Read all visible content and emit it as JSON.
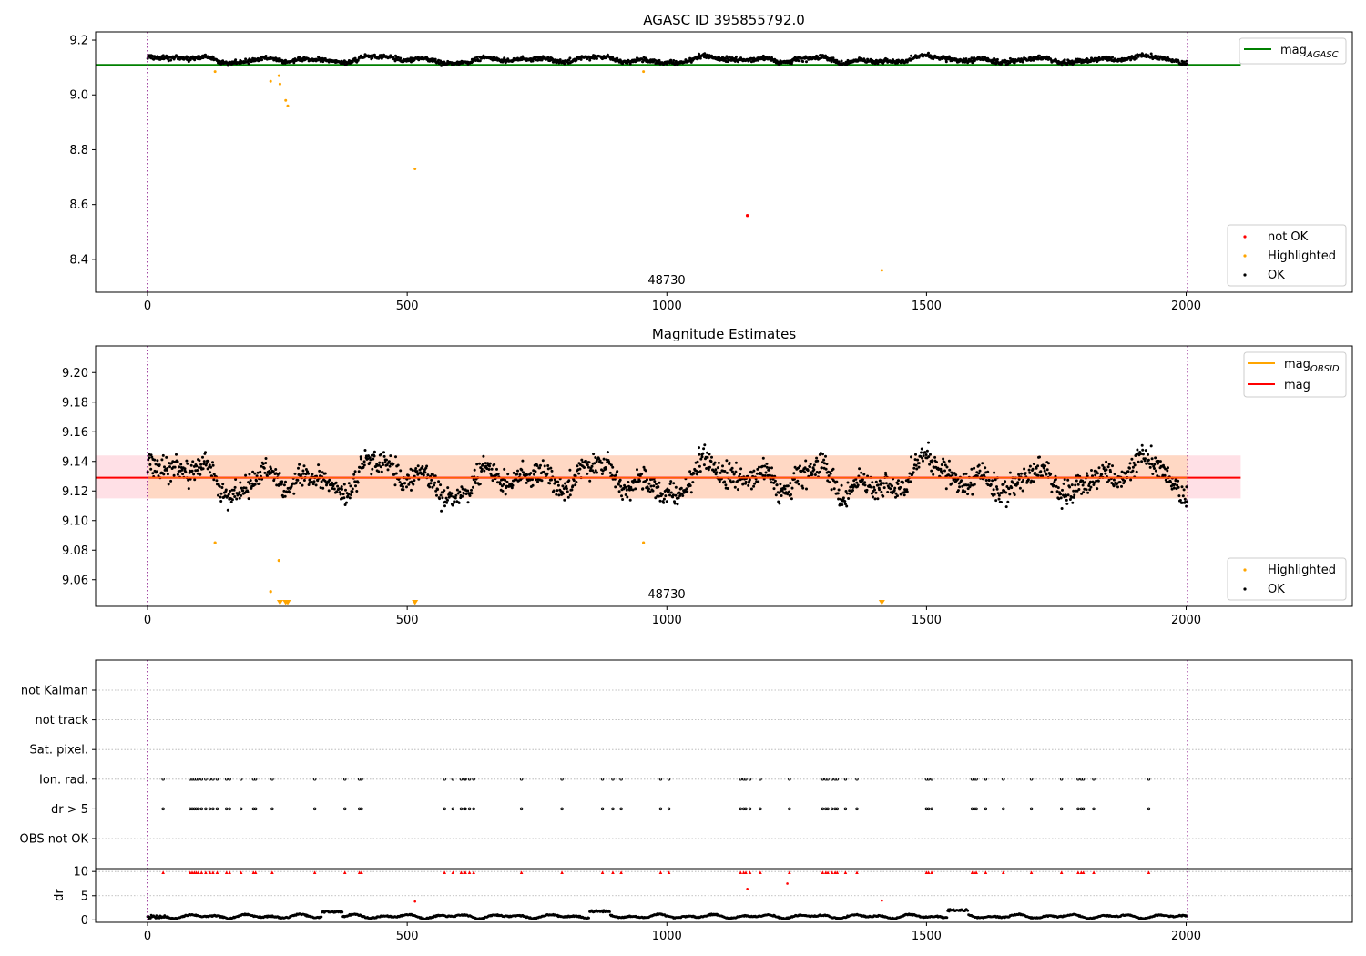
{
  "figure": {
    "background": "#ffffff"
  },
  "colors": {
    "not_ok": "#ff0000",
    "highlighted": "#ffa500",
    "ok": "#000000",
    "agasc_line": "#008000",
    "mag_line": "#ff0000",
    "mag_obsid_line": "#ffa500",
    "band_outer": "#ffe0e6",
    "band_inner": "#ffd8c4",
    "obs_boundary": "#800080"
  },
  "chart_data": [
    {
      "type": "scatter",
      "title": "AGASC ID 395855792.0",
      "xlabel": "",
      "ylabel": "",
      "xlim": [
        -100,
        2320
      ],
      "ylim": [
        8.28,
        9.23
      ],
      "xticks": [
        0,
        500,
        1000,
        1500,
        2000
      ],
      "yticks": [
        8.4,
        8.6,
        8.8,
        9.0,
        9.2
      ],
      "ytick_labels": [
        "8.4",
        "8.6",
        "8.8",
        "9.0",
        "9.2"
      ],
      "annotation": {
        "text": "48730",
        "x": 1000
      },
      "obs_boundaries": [
        0,
        2003
      ],
      "reference_line": {
        "name": "mag$_{AGASC}$",
        "y": 9.11,
        "x_range": [
          -100,
          2105
        ]
      },
      "ok_band": {
        "center": 9.128,
        "amplitude": 0.02
      },
      "highlighted_points": [
        [
          130,
          9.085
        ],
        [
          237,
          9.05
        ],
        [
          253,
          9.07
        ],
        [
          255,
          9.04
        ],
        [
          266,
          8.98
        ],
        [
          270,
          8.96
        ],
        [
          515,
          8.73
        ],
        [
          955,
          9.085
        ],
        [
          1414,
          8.36
        ]
      ],
      "not_ok_points": [
        [
          1155,
          8.56
        ]
      ],
      "legend_ref": {
        "label": "mag",
        "sub": "AGASC",
        "position": "upper right"
      },
      "legend_points": {
        "position": "lower right",
        "entries": [
          "not OK",
          "Highlighted",
          "OK"
        ]
      }
    },
    {
      "type": "scatter",
      "title": "Magnitude Estimates",
      "xlabel": "",
      "ylabel": "",
      "xlim": [
        -100,
        2320
      ],
      "ylim": [
        9.042,
        9.218
      ],
      "xticks": [
        0,
        500,
        1000,
        1500,
        2000
      ],
      "yticks": [
        9.06,
        9.08,
        9.1,
        9.12,
        9.14,
        9.16,
        9.18,
        9.2
      ],
      "ytick_labels": [
        "9.06",
        "9.08",
        "9.10",
        "9.12",
        "9.14",
        "9.16",
        "9.18",
        "9.20"
      ],
      "annotation": {
        "text": "48730",
        "x": 1000
      },
      "obs_boundaries": [
        0,
        2003
      ],
      "mag": 9.129,
      "mag_obsid": 9.129,
      "band_outer": [
        9.115,
        9.144
      ],
      "band_inner": [
        9.115,
        9.144
      ],
      "band_x_range": [
        -100,
        2105
      ],
      "highlighted_points": [
        [
          130,
          9.085
        ],
        [
          237,
          9.052
        ],
        [
          253,
          9.073
        ],
        [
          955,
          9.085
        ]
      ],
      "highlighted_offscale_x": [
        255,
        266,
        270,
        515,
        1414
      ],
      "legend_lines": {
        "position": "upper right",
        "entries": [
          {
            "label": "mag",
            "sub": "OBSID",
            "color": "#ffa500"
          },
          {
            "label": "mag",
            "color": "#ff0000"
          }
        ]
      },
      "legend_points": {
        "position": "lower right",
        "entries": [
          "Highlighted",
          "OK"
        ]
      }
    },
    {
      "type": "scatter",
      "title": "",
      "xlabel": "",
      "ylabel": "",
      "xlim": [
        -100,
        2320
      ],
      "xticks": [
        0,
        500,
        1000,
        1500,
        2000
      ],
      "obs_boundaries": [
        0,
        2003
      ],
      "flag_rows": [
        "not Kalman",
        "not track",
        "Sat. pixel.",
        "Ion. rad.",
        "dr > 5",
        "OBS not OK"
      ],
      "flag_times": [
        30,
        82,
        86,
        90,
        94,
        98,
        104,
        112,
        120,
        126,
        134,
        152,
        158,
        180,
        204,
        208,
        240,
        322,
        380,
        408,
        412,
        572,
        588,
        604,
        610,
        612,
        620,
        628,
        720,
        798,
        876,
        896,
        912,
        988,
        1004,
        1142,
        1148,
        1152,
        1160,
        1180,
        1236,
        1300,
        1306,
        1310,
        1318,
        1324,
        1328,
        1344,
        1366,
        1500,
        1504,
        1510,
        1588,
        1592,
        1596,
        1614,
        1648,
        1702,
        1760,
        1792,
        1798,
        1802,
        1822,
        1928
      ],
      "flag_row_hits": {
        "Ion. rad.": true,
        "dr > 5": true
      },
      "dr_panel": {
        "ylabel": "dr",
        "ylim": [
          -0.5,
          10.6
        ],
        "yticks": [
          0,
          5,
          10
        ],
        "ytick_labels": [
          "0",
          "5",
          "10"
        ],
        "clipped_value": 10,
        "extra_red_points": [
          [
            515,
            3.8
          ],
          [
            1155,
            6.4
          ],
          [
            1232,
            7.5
          ],
          [
            1414,
            4.0
          ]
        ],
        "baseline_segments": [
          [
            0,
            0.3,
            1.0
          ],
          [
            335,
            1.5,
            1.9
          ],
          [
            850,
            1.6,
            2.0
          ],
          [
            1540,
            1.7,
            2.2
          ]
        ]
      }
    }
  ]
}
